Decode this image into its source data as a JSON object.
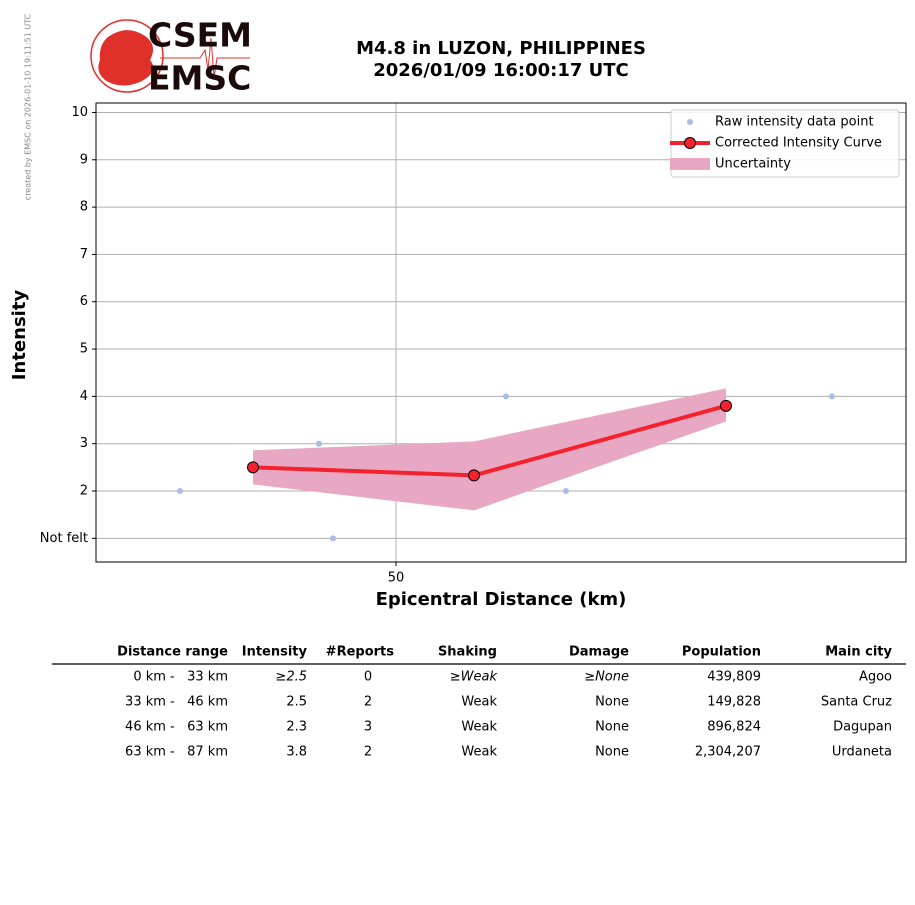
{
  "chart_data": {
    "type": "scatter",
    "title": "M4.8 in LUZON, PHILIPPINES",
    "subtitle": "2026/01/09 16:00:17 UTC",
    "logo_top": "CSEM",
    "logo_bottom": "EMSC",
    "side_note": "created by EMSC on 2026-01-10 19:11:51 UTC",
    "x_label": "Epicentral Distance (km)",
    "y_label": "Intensity",
    "xlim": [
      20,
      101
    ],
    "xticks": [
      50
    ],
    "ylim": [
      0.5,
      10.2
    ],
    "yticks": [
      {
        "value": 1,
        "label": "Not felt"
      },
      2,
      3,
      4,
      5,
      6,
      7,
      8,
      9,
      10
    ],
    "grid": true,
    "legend": "upper right",
    "series": [
      {
        "name": "Raw intensity data point",
        "type": "scatter",
        "color": "#aabbe6",
        "x": [
          28.4,
          42.3,
          43.7,
          61,
          67,
          93.6
        ],
        "values": [
          2,
          3,
          1,
          4,
          2,
          4
        ]
      },
      {
        "name": "Corrected Intensity Curve",
        "type": "line",
        "color": "#f5222d",
        "x": [
          35.7,
          57.8,
          83
        ],
        "values": [
          2.5,
          2.33,
          3.8
        ]
      },
      {
        "name": "Uncertainty",
        "type": "band",
        "color": "#e8a8c4",
        "x": [
          35.7,
          57.8,
          83
        ],
        "lower": [
          2.14,
          1.59,
          3.47
        ],
        "values": [
          2.86,
          3.05,
          4.17
        ]
      }
    ]
  },
  "table": {
    "header": [
      "Distance range",
      "Intensity",
      "#Reports",
      "Shaking",
      "Damage",
      "Population",
      "Main city"
    ],
    "rows": [
      [
        "0 km -   33 km",
        "≥2.5",
        "0",
        "≥Weak",
        "≥None",
        "439,809",
        "Agoo"
      ],
      [
        "33 km -   46 km",
        "2.5",
        "2",
        "Weak",
        "None",
        "149,828",
        "Santa Cruz"
      ],
      [
        "46 km -   63 km",
        "2.3",
        "3",
        "Weak",
        "None",
        "896,824",
        "Dagupan"
      ],
      [
        "63 km -   87 km",
        "3.8",
        "2",
        "Weak",
        "None",
        "2,304,207",
        "Urdaneta"
      ]
    ]
  }
}
